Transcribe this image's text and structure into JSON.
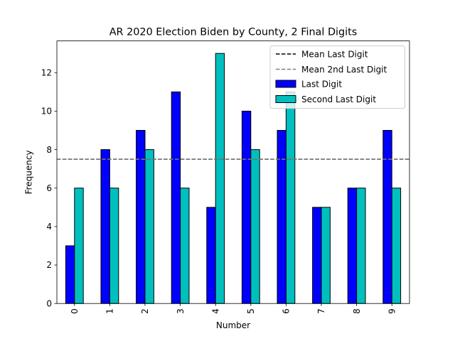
{
  "chart_data": {
    "type": "bar",
    "title": "AR 2020 Election Biden by County, 2 Final Digits",
    "xlabel": "Number",
    "ylabel": "Frequency",
    "categories": [
      "0",
      "1",
      "2",
      "3",
      "4",
      "5",
      "6",
      "7",
      "8",
      "9"
    ],
    "series": [
      {
        "name": "Last Digit",
        "color": "#0000ff",
        "values": [
          3,
          8,
          9,
          11,
          5,
          10,
          9,
          5,
          6,
          9
        ]
      },
      {
        "name": "Second Last Digit",
        "color": "#00bfbf",
        "values": [
          6,
          6,
          8,
          6,
          13,
          8,
          11,
          5,
          6,
          6
        ]
      }
    ],
    "reference_lines": [
      {
        "name": "Mean Last Digit",
        "value": 7.5,
        "color": "#000000",
        "style": "dashed"
      },
      {
        "name": "Mean 2nd Last Digit",
        "value": 7.5,
        "color": "#808080",
        "style": "dashed"
      }
    ],
    "yticks": [
      0,
      2,
      4,
      6,
      8,
      10,
      12
    ],
    "ylim": [
      0,
      13.65
    ],
    "legend_position": "top-right",
    "grid": false
  }
}
